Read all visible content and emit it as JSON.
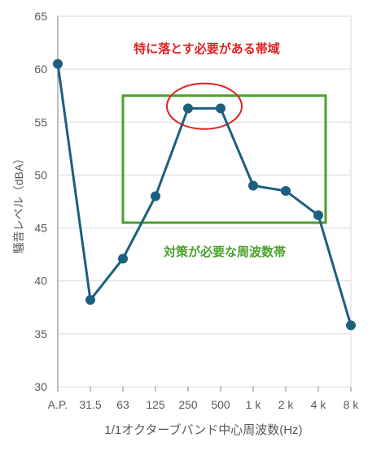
{
  "chart_data": {
    "type": "line",
    "categories": [
      "A.P.",
      "31.5",
      "63",
      "125",
      "250",
      "500",
      "1 k",
      "2 k",
      "4 k",
      "8 k"
    ],
    "series": [
      {
        "values": [
          60.5,
          38.2,
          42.1,
          48.0,
          56.3,
          56.3,
          49.0,
          48.5,
          46.2,
          35.8
        ]
      }
    ],
    "xlabel": "1/1オクターブバンド中心周波数(Hz)",
    "ylabel": "騒音レベル（dBA）",
    "ylim": [
      30,
      65
    ],
    "yticks": [
      30,
      35,
      40,
      45,
      50,
      55,
      60,
      65
    ],
    "grid": "horizontal",
    "colors": {
      "line": "#1d5f7f",
      "grid": "#d9d9d9",
      "axis": "#7f7f7f",
      "text": "#595959",
      "highlight_red": "#e02020",
      "highlight_green": "#4aa02c"
    },
    "annotations": {
      "red_label": "特に落とす必要がある帯域",
      "green_label": "対策が必要な周波数帯"
    }
  }
}
